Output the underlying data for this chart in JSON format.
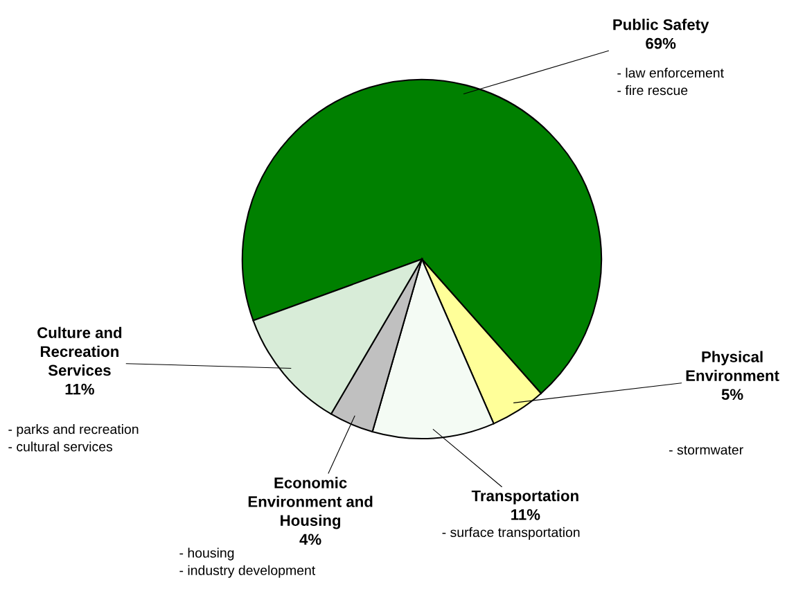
{
  "chart_data": {
    "type": "pie",
    "categories": [
      "Public Safety",
      "Physical\nEnvironment",
      "Transportation",
      "Economic\nEnvironment and\nHousing",
      "Culture and\nRecreation\nServices"
    ],
    "values": [
      69,
      5,
      11,
      4,
      11
    ],
    "value_labels": [
      "69%",
      "5%",
      "11%",
      "4%",
      "11%"
    ],
    "colors": [
      "#008000",
      "#ffff99",
      "#f4fbf4",
      "#c0c0c0",
      "#d8ecd8"
    ],
    "annotations": [
      "- law enforcement\n- fire rescue",
      "- stormwater",
      "- surface transportation",
      "- housing\n- industry development",
      "- parks and recreation\n- cultural services"
    ]
  }
}
